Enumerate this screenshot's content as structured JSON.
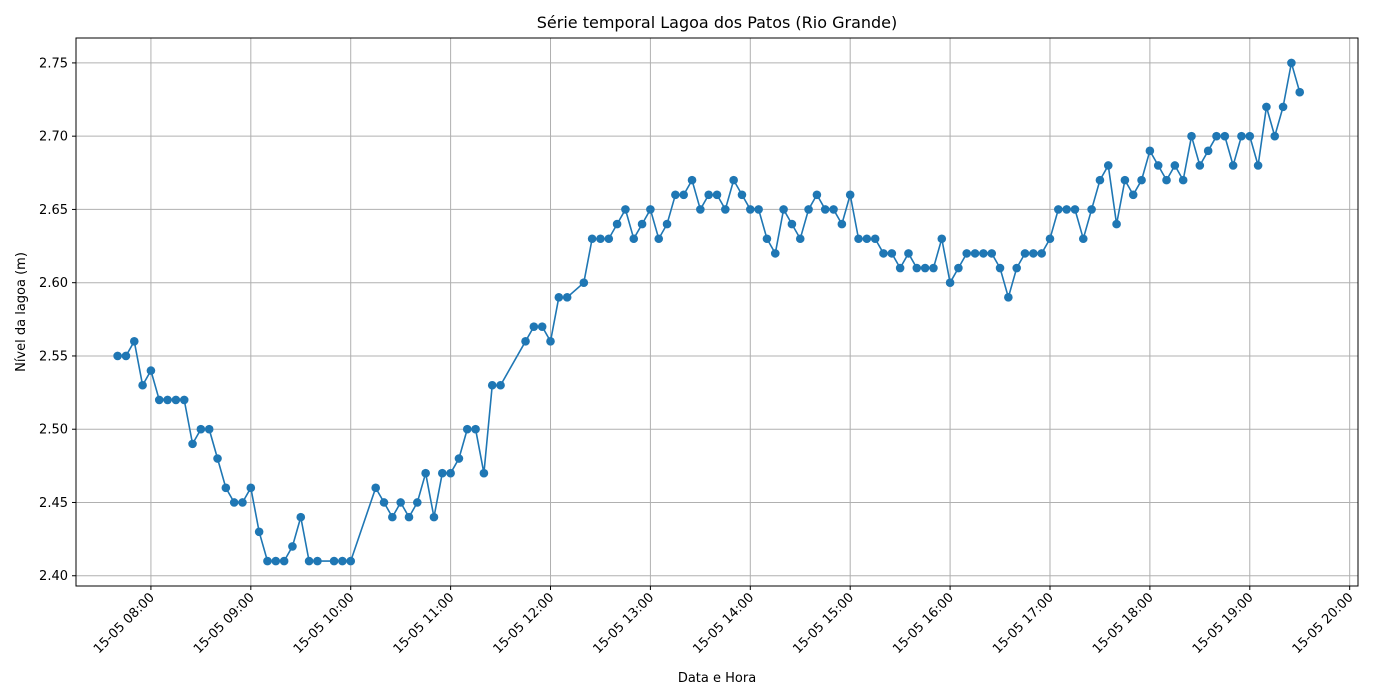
{
  "chart_data": {
    "type": "line",
    "title": "Série temporal Lagoa dos Patos (Rio Grande)",
    "xlabel": "Data e Hora",
    "ylabel": "Nível da lagoa (m)",
    "grid": true,
    "color": "#1f77b4",
    "xlim": [
      "15-05 07:15",
      "15-05 20:05"
    ],
    "ylim": [
      2.393,
      2.767
    ],
    "x_ticks": [
      "15-05 08:00",
      "15-05 09:00",
      "15-05 10:00",
      "15-05 11:00",
      "15-05 12:00",
      "15-05 13:00",
      "15-05 14:00",
      "15-05 15:00",
      "15-05 16:00",
      "15-05 17:00",
      "15-05 18:00",
      "15-05 19:00",
      "15-05 20:00"
    ],
    "y_ticks": [
      "2.40",
      "2.45",
      "2.50",
      "2.55",
      "2.60",
      "2.65",
      "2.70",
      "2.75"
    ],
    "series": [
      {
        "x": [
          "15-05 07:40",
          "15-05 07:45",
          "15-05 07:50",
          "15-05 07:55",
          "15-05 08:00",
          "15-05 08:05",
          "15-05 08:10",
          "15-05 08:15",
          "15-05 08:20",
          "15-05 08:25",
          "15-05 08:30",
          "15-05 08:35",
          "15-05 08:40",
          "15-05 08:45",
          "15-05 08:50",
          "15-05 08:55",
          "15-05 09:00",
          "15-05 09:05",
          "15-05 09:10",
          "15-05 09:15",
          "15-05 09:20",
          "15-05 09:25",
          "15-05 09:30",
          "15-05 09:35",
          "15-05 09:40",
          "15-05 09:50",
          "15-05 09:55",
          "15-05 10:00",
          "15-05 10:15",
          "15-05 10:20",
          "15-05 10:25",
          "15-05 10:30",
          "15-05 10:35",
          "15-05 10:40",
          "15-05 10:45",
          "15-05 10:50",
          "15-05 10:55",
          "15-05 11:00",
          "15-05 11:05",
          "15-05 11:10",
          "15-05 11:15",
          "15-05 11:20",
          "15-05 11:25",
          "15-05 11:30",
          "15-05 11:45",
          "15-05 11:50",
          "15-05 11:55",
          "15-05 12:00",
          "15-05 12:05",
          "15-05 12:10",
          "15-05 12:20",
          "15-05 12:25",
          "15-05 12:30",
          "15-05 12:35",
          "15-05 12:40",
          "15-05 12:45",
          "15-05 12:50",
          "15-05 12:55",
          "15-05 13:00",
          "15-05 13:05",
          "15-05 13:10",
          "15-05 13:15",
          "15-05 13:20",
          "15-05 13:25",
          "15-05 13:30",
          "15-05 13:35",
          "15-05 13:40",
          "15-05 13:45",
          "15-05 13:50",
          "15-05 13:55",
          "15-05 14:00",
          "15-05 14:05",
          "15-05 14:10",
          "15-05 14:15",
          "15-05 14:20",
          "15-05 14:25",
          "15-05 14:30",
          "15-05 14:35",
          "15-05 14:40",
          "15-05 14:45",
          "15-05 14:50",
          "15-05 14:55",
          "15-05 15:00",
          "15-05 15:05",
          "15-05 15:10",
          "15-05 15:15",
          "15-05 15:20",
          "15-05 15:25",
          "15-05 15:30",
          "15-05 15:35",
          "15-05 15:40",
          "15-05 15:45",
          "15-05 15:50",
          "15-05 15:55",
          "15-05 16:00",
          "15-05 16:05",
          "15-05 16:10",
          "15-05 16:15",
          "15-05 16:20",
          "15-05 16:25",
          "15-05 16:30",
          "15-05 16:35",
          "15-05 16:40",
          "15-05 16:45",
          "15-05 16:50",
          "15-05 16:55",
          "15-05 17:00",
          "15-05 17:05",
          "15-05 17:10",
          "15-05 17:15",
          "15-05 17:20",
          "15-05 17:25",
          "15-05 17:30",
          "15-05 17:35",
          "15-05 17:40",
          "15-05 17:45",
          "15-05 17:50",
          "15-05 17:55",
          "15-05 18:00",
          "15-05 18:05",
          "15-05 18:10",
          "15-05 18:15",
          "15-05 18:20",
          "15-05 18:25",
          "15-05 18:30",
          "15-05 18:35",
          "15-05 18:40",
          "15-05 18:45",
          "15-05 18:50",
          "15-05 18:55",
          "15-05 19:00",
          "15-05 19:05",
          "15-05 19:10",
          "15-05 19:15",
          "15-05 19:20",
          "15-05 19:25",
          "15-05 19:30"
        ],
        "y": [
          2.55,
          2.55,
          2.56,
          2.53,
          2.54,
          2.52,
          2.52,
          2.52,
          2.52,
          2.49,
          2.5,
          2.5,
          2.48,
          2.46,
          2.45,
          2.45,
          2.46,
          2.43,
          2.41,
          2.41,
          2.41,
          2.42,
          2.44,
          2.41,
          2.41,
          2.41,
          2.41,
          2.41,
          2.46,
          2.45,
          2.44,
          2.45,
          2.44,
          2.45,
          2.47,
          2.44,
          2.47,
          2.47,
          2.48,
          2.5,
          2.5,
          2.47,
          2.53,
          2.53,
          2.56,
          2.57,
          2.57,
          2.56,
          2.59,
          2.59,
          2.6,
          2.63,
          2.63,
          2.63,
          2.64,
          2.65,
          2.63,
          2.64,
          2.65,
          2.63,
          2.64,
          2.66,
          2.66,
          2.67,
          2.65,
          2.66,
          2.66,
          2.65,
          2.67,
          2.66,
          2.65,
          2.65,
          2.63,
          2.62,
          2.65,
          2.64,
          2.63,
          2.65,
          2.66,
          2.65,
          2.65,
          2.64,
          2.66,
          2.63,
          2.63,
          2.63,
          2.62,
          2.62,
          2.61,
          2.62,
          2.61,
          2.61,
          2.61,
          2.63,
          2.6,
          2.61,
          2.62,
          2.62,
          2.62,
          2.62,
          2.61,
          2.59,
          2.61,
          2.62,
          2.62,
          2.62,
          2.63,
          2.65,
          2.65,
          2.65,
          2.63,
          2.65,
          2.67,
          2.68,
          2.64,
          2.67,
          2.66,
          2.67,
          2.69,
          2.68,
          2.67,
          2.68,
          2.67,
          2.7,
          2.68,
          2.69,
          2.7,
          2.7,
          2.68,
          2.7,
          2.7,
          2.68,
          2.72,
          2.7,
          2.72,
          2.75,
          2.73
        ]
      }
    ]
  }
}
